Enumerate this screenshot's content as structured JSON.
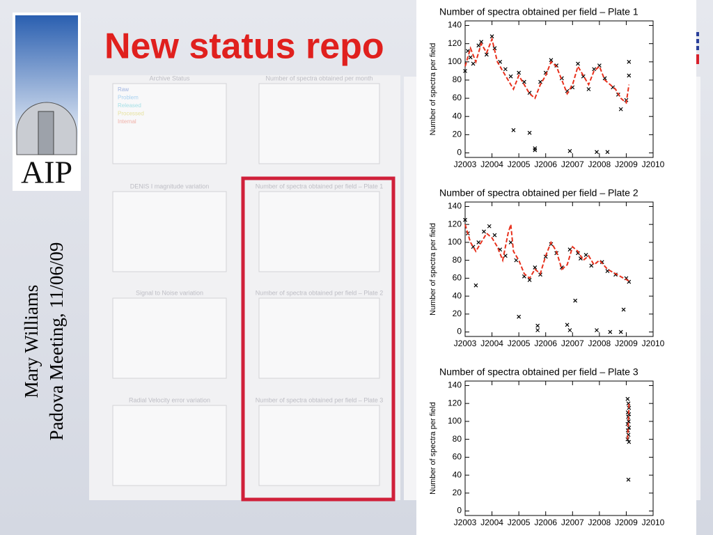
{
  "slide": {
    "title": "New status repo",
    "author": "Mary Williams",
    "meeting": "Padova Meeting, 11/06/09",
    "logo_text": "AIP"
  },
  "background_panels": [
    {
      "title": "Archive Status",
      "legend": [
        "Raw",
        "Problem",
        "Released",
        "Processed",
        "Internal"
      ]
    },
    {
      "title": "Number of spectra obtained per month"
    },
    {
      "title": "DENIS I magnitude variation"
    },
    {
      "title": "Number of spectra obtained per field – Plate 1"
    },
    {
      "title": "Signal to Noise variation"
    },
    {
      "title": "Number of spectra obtained per field – Plate 2"
    },
    {
      "title": "Radial Velocity error variation"
    },
    {
      "title": "Number of spectra obtained per field – Plate 3"
    }
  ],
  "chart_data": [
    {
      "type": "scatter",
      "title": "Number of spectra obtained per field – Plate 1",
      "y_label": "Number of spectra per field",
      "xlim": [
        2003,
        2010
      ],
      "ylim": [
        -5,
        145
      ],
      "xticks": [
        {
          "value": 2003,
          "label": "J2003"
        },
        {
          "value": 2004,
          "label": "J2004"
        },
        {
          "value": 2005,
          "label": "J2005"
        },
        {
          "value": 2006,
          "label": "J2006"
        },
        {
          "value": 2007,
          "label": "J2007"
        },
        {
          "value": 2008,
          "label": "J2008"
        },
        {
          "value": 2009,
          "label": "J2009"
        },
        {
          "value": 2010,
          "label": "J2010"
        }
      ],
      "yticks": [
        0,
        20,
        40,
        60,
        80,
        100,
        120,
        140
      ],
      "series": [
        {
          "mark": "cross",
          "color": "#000000",
          "x": [
            2003.0,
            2003.1,
            2003.2,
            2003.3,
            2003.5,
            2003.6,
            2003.8,
            2004.0,
            2004.1,
            2004.3,
            2004.5,
            2004.7,
            2004.8,
            2005.0,
            2005.2,
            2005.4,
            2005.4,
            2005.6,
            2005.6,
            2005.8,
            2006.0,
            2006.2,
            2006.4,
            2006.6,
            2006.8,
            2006.9,
            2007.0,
            2007.2,
            2007.4,
            2007.6,
            2007.8,
            2007.9,
            2008.0,
            2008.2,
            2008.3,
            2008.5,
            2008.7,
            2008.8,
            2009.0,
            2009.1,
            2009.1
          ],
          "values": [
            90,
            112,
            105,
            98,
            118,
            122,
            108,
            128,
            115,
            100,
            92,
            84,
            25,
            88,
            78,
            22,
            66,
            5,
            3,
            78,
            88,
            102,
            96,
            82,
            68,
            2,
            72,
            98,
            84,
            70,
            92,
            1,
            96,
            82,
            1,
            72,
            64,
            48,
            58,
            100,
            85
          ]
        },
        {
          "mark": "line",
          "color": "#e8301c",
          "x": [
            2003.0,
            2003.2,
            2003.4,
            2003.6,
            2003.8,
            2004.0,
            2004.2,
            2004.4,
            2004.6,
            2004.8,
            2005.0,
            2005.2,
            2005.4,
            2005.6,
            2005.8,
            2006.0,
            2006.2,
            2006.4,
            2006.6,
            2006.8,
            2007.0,
            2007.2,
            2007.4,
            2007.6,
            2007.8,
            2008.0,
            2008.2,
            2008.4,
            2008.6,
            2008.8,
            2009.0,
            2009.1
          ],
          "values": [
            95,
            115,
            100,
            120,
            110,
            125,
            100,
            90,
            80,
            70,
            85,
            75,
            65,
            60,
            75,
            85,
            100,
            95,
            80,
            65,
            75,
            95,
            85,
            75,
            90,
            95,
            80,
            75,
            70,
            60,
            55,
            75
          ]
        }
      ]
    },
    {
      "type": "scatter",
      "title": "Number of spectra obtained per field – Plate 2",
      "y_label": "Number of spectra per field",
      "xlim": [
        2003,
        2010
      ],
      "ylim": [
        -5,
        145
      ],
      "xticks": [
        {
          "value": 2003,
          "label": "J2003"
        },
        {
          "value": 2004,
          "label": "J2004"
        },
        {
          "value": 2005,
          "label": "J2005"
        },
        {
          "value": 2006,
          "label": "J2006"
        },
        {
          "value": 2007,
          "label": "J2007"
        },
        {
          "value": 2008,
          "label": "J2008"
        },
        {
          "value": 2009,
          "label": "J2009"
        },
        {
          "value": 2010,
          "label": "J2010"
        }
      ],
      "yticks": [
        0,
        20,
        40,
        60,
        80,
        100,
        120,
        140
      ],
      "series": [
        {
          "mark": "cross",
          "color": "#000000",
          "x": [
            2003.0,
            2003.1,
            2003.3,
            2003.4,
            2003.5,
            2003.7,
            2003.9,
            2004.1,
            2004.3,
            2004.5,
            2004.7,
            2004.9,
            2005.0,
            2005.2,
            2005.4,
            2005.6,
            2005.7,
            2005.7,
            2005.8,
            2006.0,
            2006.2,
            2006.4,
            2006.6,
            2006.8,
            2006.9,
            2006.9,
            2007.1,
            2007.2,
            2007.3,
            2007.5,
            2007.7,
            2007.9,
            2008.1,
            2008.3,
            2008.4,
            2008.6,
            2008.8,
            2008.9,
            2009.0,
            2009.1
          ],
          "values": [
            125,
            110,
            95,
            52,
            100,
            112,
            118,
            108,
            92,
            85,
            100,
            80,
            17,
            62,
            58,
            72,
            7,
            2,
            64,
            84,
            98,
            88,
            72,
            8,
            2,
            92,
            35,
            88,
            82,
            86,
            74,
            2,
            78,
            68,
            0,
            64,
            0,
            25,
            60,
            56
          ]
        },
        {
          "mark": "line",
          "color": "#e8301c",
          "x": [
            2003.0,
            2003.2,
            2003.4,
            2003.6,
            2003.8,
            2004.0,
            2004.2,
            2004.4,
            2004.6,
            2004.7,
            2004.8,
            2005.0,
            2005.2,
            2005.4,
            2005.6,
            2005.8,
            2006.0,
            2006.2,
            2006.4,
            2006.6,
            2006.8,
            2007.0,
            2007.2,
            2007.4,
            2007.6,
            2007.8,
            2008.0,
            2008.3,
            2008.6,
            2008.9,
            2009.1
          ],
          "values": [
            120,
            100,
            90,
            100,
            110,
            105,
            95,
            80,
            110,
            120,
            90,
            80,
            65,
            60,
            70,
            65,
            85,
            100,
            90,
            70,
            75,
            95,
            90,
            80,
            85,
            75,
            80,
            70,
            65,
            60,
            57
          ]
        }
      ]
    },
    {
      "type": "scatter",
      "title": "Number of spectra obtained per field – Plate 3",
      "y_label": "Number of spectra per field",
      "xlim": [
        2003,
        2010
      ],
      "ylim": [
        -5,
        145
      ],
      "xticks": [
        {
          "value": 2003,
          "label": "J2003"
        },
        {
          "value": 2004,
          "label": "J2004"
        },
        {
          "value": 2005,
          "label": "J2005"
        },
        {
          "value": 2006,
          "label": "J2006"
        },
        {
          "value": 2007,
          "label": "J2007"
        },
        {
          "value": 2008,
          "label": "J2008"
        },
        {
          "value": 2009,
          "label": "J2009"
        },
        {
          "value": 2010,
          "label": "J2010"
        }
      ],
      "yticks": [
        0,
        20,
        40,
        60,
        80,
        100,
        120,
        140
      ],
      "series": [
        {
          "mark": "cross",
          "color": "#000000",
          "x": [
            2009.05,
            2009.08,
            2009.1,
            2009.06,
            2009.1,
            2009.07,
            2009.09,
            2009.05,
            2009.1,
            2009.06,
            2009.08,
            2009.05,
            2009.1,
            2009.08
          ],
          "values": [
            125,
            120,
            115,
            110,
            108,
            105,
            100,
            97,
            93,
            90,
            85,
            80,
            77,
            35
          ]
        },
        {
          "mark": "line",
          "color": "#e8301c",
          "x": [
            2009.05,
            2009.08,
            2009.1
          ],
          "values": [
            80,
            100,
            120
          ]
        }
      ]
    }
  ]
}
